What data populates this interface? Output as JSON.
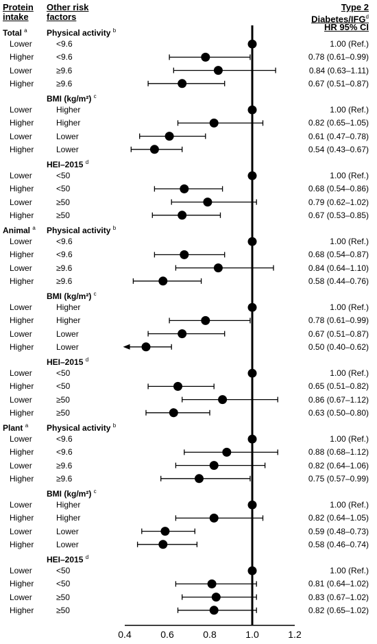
{
  "headers": {
    "protein_line1": "Protein",
    "protein_line2": "intake",
    "risk_line1": "Other risk",
    "risk_line2": "factors",
    "hr_line1": "Type 2",
    "hr_line2": "Diabetes/IFG",
    "hr_line2_sup": "d",
    "hr_line3": "HR 95% CI"
  },
  "chart_data": {
    "type": "forest",
    "xlabel": "HR (95% CI)",
    "xlim": [
      0.4,
      1.2
    ],
    "xticks": [
      "0.4",
      "0.6",
      "0.8",
      "1.0",
      "1.2"
    ],
    "reference_line": 1.0,
    "sections": [
      {
        "group": "Total",
        "group_sup": "a",
        "blocks": [
          {
            "factor": "Physical activity",
            "factor_sup": "b",
            "rows": [
              {
                "intake": "Lower",
                "level": "<9.6",
                "hr": 1.0,
                "lo": 1.0,
                "hi": 1.0,
                "label": "1.00 (Ref.)"
              },
              {
                "intake": "Higher",
                "level": "<9.6",
                "hr": 0.78,
                "lo": 0.61,
                "hi": 0.99,
                "label": "0.78 (0.61–0.99)"
              },
              {
                "intake": "Lower",
                "level": "≥9.6",
                "hr": 0.84,
                "lo": 0.63,
                "hi": 1.11,
                "label": "0.84 (0.63–1.11)"
              },
              {
                "intake": "Higher",
                "level": "≥9.6",
                "hr": 0.67,
                "lo": 0.51,
                "hi": 0.87,
                "label": "0.67 (0.51–0.87)"
              }
            ]
          },
          {
            "factor": "BMI (kg/m²)",
            "factor_sup": "c",
            "rows": [
              {
                "intake": "Lower",
                "level": "Higher",
                "hr": 1.0,
                "lo": 1.0,
                "hi": 1.0,
                "label": "1.00 (Ref.)"
              },
              {
                "intake": "Higher",
                "level": "Higher",
                "hr": 0.82,
                "lo": 0.65,
                "hi": 1.05,
                "label": "0.82 (0.65–1.05)"
              },
              {
                "intake": "Lower",
                "level": "Lower",
                "hr": 0.61,
                "lo": 0.47,
                "hi": 0.78,
                "label": "0.61 (0.47–0.78)"
              },
              {
                "intake": "Higher",
                "level": "Lower",
                "hr": 0.54,
                "lo": 0.43,
                "hi": 0.67,
                "label": "0.54 (0.43–0.67)"
              }
            ]
          },
          {
            "factor": "HEI–2015",
            "factor_sup": "d",
            "rows": [
              {
                "intake": "Lower",
                "level": "<50",
                "hr": 1.0,
                "lo": 1.0,
                "hi": 1.0,
                "label": "1.00 (Ref.)"
              },
              {
                "intake": "Higher",
                "level": "<50",
                "hr": 0.68,
                "lo": 0.54,
                "hi": 0.86,
                "label": "0.68 (0.54–0.86)"
              },
              {
                "intake": "Lower",
                "level": "≥50",
                "hr": 0.79,
                "lo": 0.62,
                "hi": 1.02,
                "label": "0.79 (0.62–1.02)"
              },
              {
                "intake": "Higher",
                "level": "≥50",
                "hr": 0.67,
                "lo": 0.53,
                "hi": 0.85,
                "label": "0.67 (0.53–0.85)"
              }
            ]
          }
        ]
      },
      {
        "group": "Animal",
        "group_sup": "a",
        "blocks": [
          {
            "factor": "Physical activity",
            "factor_sup": "b",
            "rows": [
              {
                "intake": "Lower",
                "level": "<9.6",
                "hr": 1.0,
                "lo": 1.0,
                "hi": 1.0,
                "label": "1.00 (Ref.)"
              },
              {
                "intake": "Higher",
                "level": "<9.6",
                "hr": 0.68,
                "lo": 0.54,
                "hi": 0.87,
                "label": "0.68 (0.54–0.87)"
              },
              {
                "intake": "Lower",
                "level": "≥9.6",
                "hr": 0.84,
                "lo": 0.64,
                "hi": 1.1,
                "label": "0.84 (0.64–1.10)"
              },
              {
                "intake": "Higher",
                "level": "≥9.6",
                "hr": 0.58,
                "lo": 0.44,
                "hi": 0.76,
                "label": "0.58 (0.44–0.76)"
              }
            ]
          },
          {
            "factor": "BMI (kg/m²)",
            "factor_sup": "c",
            "rows": [
              {
                "intake": "Lower",
                "level": "Higher",
                "hr": 1.0,
                "lo": 1.0,
                "hi": 1.0,
                "label": "1.00 (Ref.)"
              },
              {
                "intake": "Higher",
                "level": "Higher",
                "hr": 0.78,
                "lo": 0.61,
                "hi": 0.99,
                "label": "0.78 (0.61–0.99)"
              },
              {
                "intake": "Lower",
                "level": "Lower",
                "hr": 0.67,
                "lo": 0.51,
                "hi": 0.87,
                "label": "0.67 (0.51–0.87)"
              },
              {
                "intake": "Higher",
                "level": "Lower",
                "hr": 0.5,
                "lo": 0.4,
                "hi": 0.62,
                "label": "0.50 (0.40–0.62)",
                "arrow_left": true
              }
            ]
          },
          {
            "factor": "HEI–2015",
            "factor_sup": "d",
            "rows": [
              {
                "intake": "Lower",
                "level": "<50",
                "hr": 1.0,
                "lo": 1.0,
                "hi": 1.0,
                "label": "1.00 (Ref.)"
              },
              {
                "intake": "Higher",
                "level": "<50",
                "hr": 0.65,
                "lo": 0.51,
                "hi": 0.82,
                "label": "0.65 (0.51–0.82)"
              },
              {
                "intake": "Lower",
                "level": "≥50",
                "hr": 0.86,
                "lo": 0.67,
                "hi": 1.12,
                "label": "0.86 (0.67–1.12)"
              },
              {
                "intake": "Higher",
                "level": "≥50",
                "hr": 0.63,
                "lo": 0.5,
                "hi": 0.8,
                "label": "0.63 (0.50–0.80)"
              }
            ]
          }
        ]
      },
      {
        "group": "Plant",
        "group_sup": "a",
        "blocks": [
          {
            "factor": "Physical activity",
            "factor_sup": "b",
            "rows": [
              {
                "intake": "Lower",
                "level": "<9.6",
                "hr": 1.0,
                "lo": 1.0,
                "hi": 1.0,
                "label": "1.00 (Ref.)"
              },
              {
                "intake": "Higher",
                "level": "<9.6",
                "hr": 0.88,
                "lo": 0.68,
                "hi": 1.12,
                "label": "0.88 (0.68–1.12)"
              },
              {
                "intake": "Lower",
                "level": "≥9.6",
                "hr": 0.82,
                "lo": 0.64,
                "hi": 1.06,
                "label": "0.82 (0.64–1.06)"
              },
              {
                "intake": "Higher",
                "level": "≥9.6",
                "hr": 0.75,
                "lo": 0.57,
                "hi": 0.99,
                "label": "0.75 (0.57–0.99)"
              }
            ]
          },
          {
            "factor": "BMI (kg/m²)",
            "factor_sup": "c",
            "rows": [
              {
                "intake": "Lower",
                "level": "Higher",
                "hr": 1.0,
                "lo": 1.0,
                "hi": 1.0,
                "label": "1.00 (Ref.)"
              },
              {
                "intake": "Higher",
                "level": "Higher",
                "hr": 0.82,
                "lo": 0.64,
                "hi": 1.05,
                "label": "0.82 (0.64–1.05)"
              },
              {
                "intake": "Lower",
                "level": "Lower",
                "hr": 0.59,
                "lo": 0.48,
                "hi": 0.73,
                "label": "0.59 (0.48–0.73)"
              },
              {
                "intake": "Higher",
                "level": "Lower",
                "hr": 0.58,
                "lo": 0.46,
                "hi": 0.74,
                "label": "0.58 (0.46–0.74)"
              }
            ]
          },
          {
            "factor": "HEI–2015",
            "factor_sup": "d",
            "rows": [
              {
                "intake": "Lower",
                "level": "<50",
                "hr": 1.0,
                "lo": 1.0,
                "hi": 1.0,
                "label": "1.00 (Ref.)"
              },
              {
                "intake": "Higher",
                "level": "<50",
                "hr": 0.81,
                "lo": 0.64,
                "hi": 1.02,
                "label": "0.81 (0.64–1.02)"
              },
              {
                "intake": "Lower",
                "level": "≥50",
                "hr": 0.83,
                "lo": 0.67,
                "hi": 1.02,
                "label": "0.83 (0.67–1.02)"
              },
              {
                "intake": "Higher",
                "level": "≥50",
                "hr": 0.82,
                "lo": 0.65,
                "hi": 1.02,
                "label": "0.82 (0.65–1.02)"
              }
            ]
          }
        ]
      }
    ]
  }
}
